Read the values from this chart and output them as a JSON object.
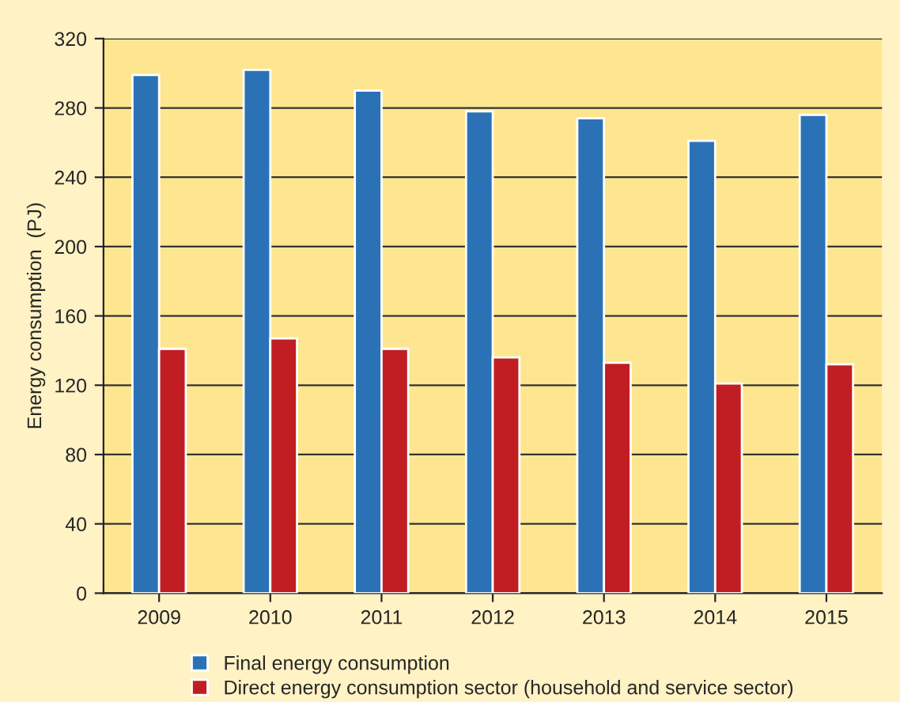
{
  "chart_data": {
    "type": "bar",
    "ylabel": "Energy consumption  (PJ)",
    "categories": [
      "2009",
      "2010",
      "2011",
      "2012",
      "2013",
      "2014",
      "2015"
    ],
    "series": [
      {
        "name": "Final energy consumption",
        "color": "#2a72b5",
        "values": [
          299,
          302,
          290,
          278,
          274,
          261,
          276
        ]
      },
      {
        "name": "Direct energy consumption sector (household and service sector)",
        "color": "#c01e23",
        "values": [
          141,
          147,
          141,
          136,
          133,
          121,
          132
        ]
      }
    ],
    "ylim": [
      0,
      320
    ],
    "yticks": [
      0,
      40,
      80,
      120,
      160,
      200,
      240,
      280,
      320
    ],
    "grid": "y",
    "legend": "bottom"
  }
}
